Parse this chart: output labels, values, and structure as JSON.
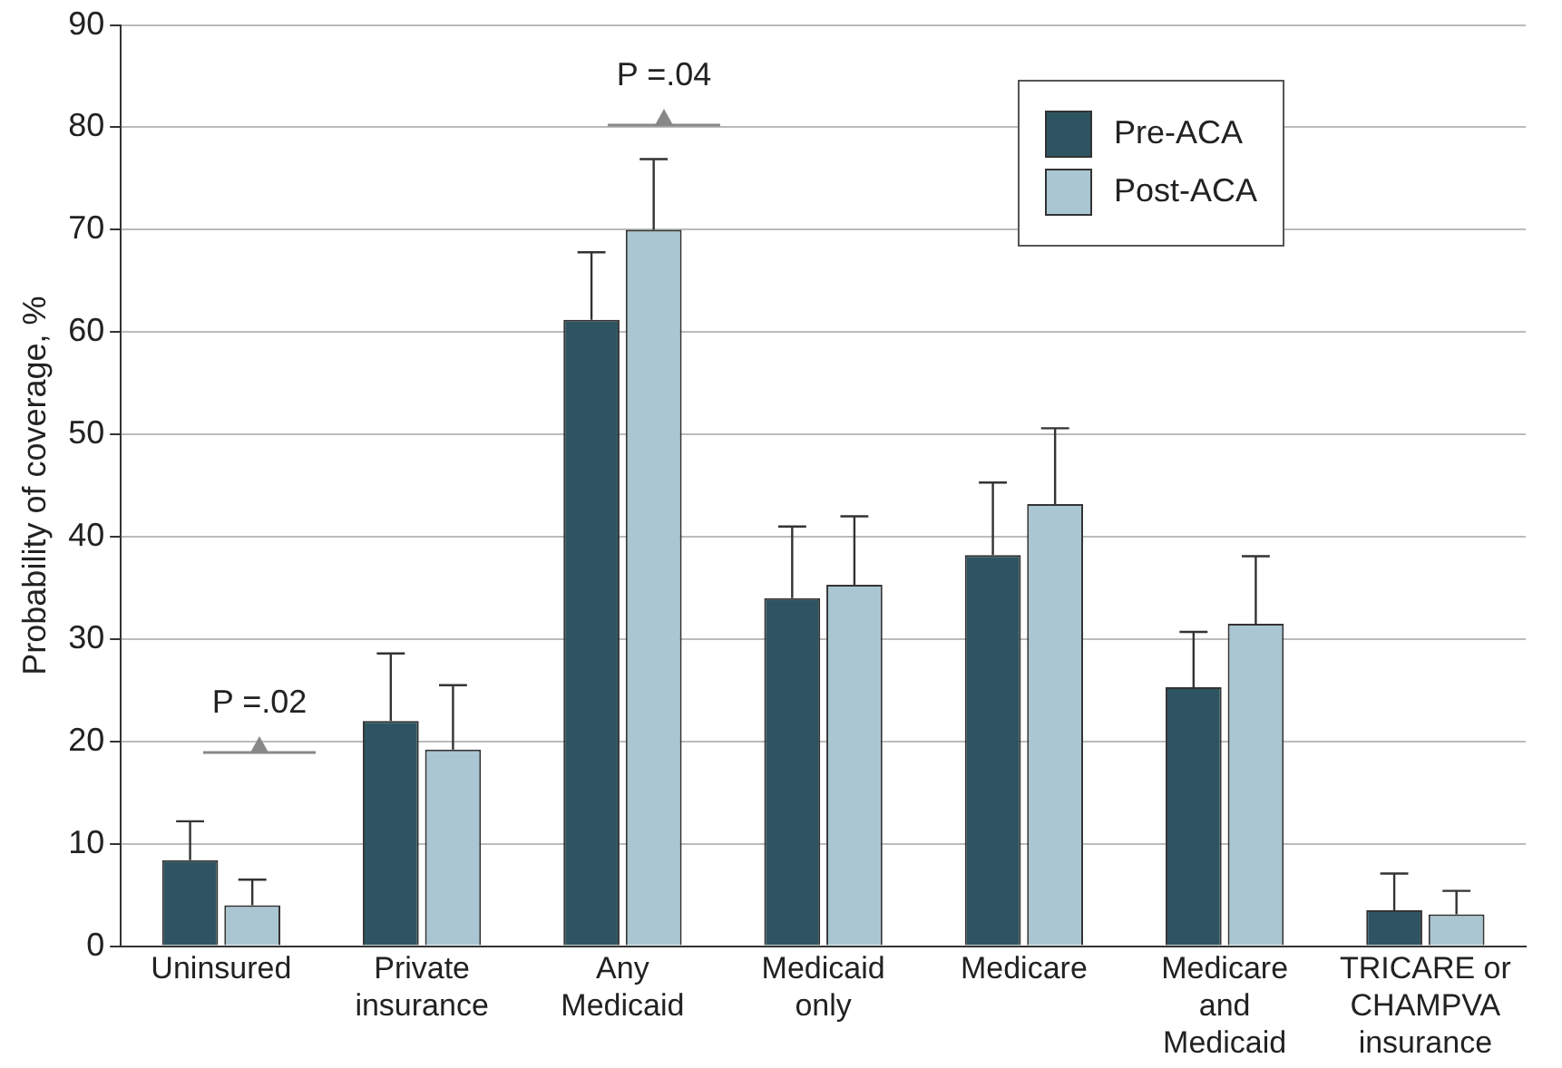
{
  "chart_data": {
    "type": "bar",
    "ylabel": "Probability of coverage, %",
    "categories": [
      "Uninsured",
      "Private insurance",
      "Any Medicaid",
      "Medicaid only",
      "Medicare",
      "Medicare and Medicaid",
      "TRICARE or CHAMPVA insurance"
    ],
    "series": [
      {
        "name": "Pre-ACA",
        "color": "#2e5461",
        "values": [
          8.4,
          22,
          61.2,
          34,
          38.2,
          25.3,
          3.5
        ],
        "errors": [
          [
            8.4,
            12.2
          ],
          [
            22,
            28.6
          ],
          [
            61.2,
            67.8
          ],
          [
            34,
            41
          ],
          [
            38.2,
            45.3
          ],
          [
            25.3,
            30.7
          ],
          [
            3.5,
            7.1
          ]
        ]
      },
      {
        "name": "Post-ACA",
        "color": "#a9c6d2",
        "values": [
          4,
          19.2,
          70,
          35.3,
          43.2,
          31.5,
          3.1
        ],
        "errors": [
          [
            4,
            6.5
          ],
          [
            19.2,
            25.5
          ],
          [
            70,
            76.9
          ],
          [
            35.3,
            42
          ],
          [
            43.2,
            50.6
          ],
          [
            31.5,
            38.1
          ],
          [
            3.1,
            5.4
          ]
        ]
      }
    ],
    "ylim": [
      0,
      90
    ],
    "yticks": [
      0,
      10,
      20,
      30,
      40,
      50,
      60,
      70,
      80,
      90
    ],
    "grid": "y",
    "legend": "top right",
    "annotations": [
      "P =.02",
      "P =.04"
    ]
  }
}
